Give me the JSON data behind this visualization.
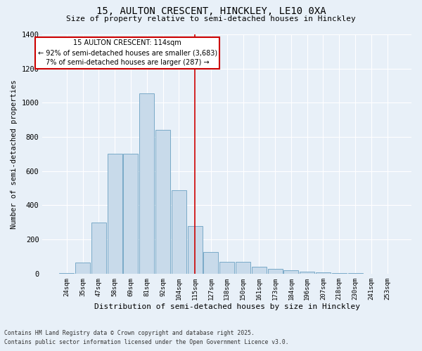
{
  "title1": "15, AULTON CRESCENT, HINCKLEY, LE10 0XA",
  "title2": "Size of property relative to semi-detached houses in Hinckley",
  "xlabel": "Distribution of semi-detached houses by size in Hinckley",
  "ylabel": "Number of semi-detached properties",
  "bar_color": "#c8daea",
  "bar_edge_color": "#7aaac8",
  "bg_color": "#e8f0f8",
  "grid_color": "#ffffff",
  "categories": [
    "24sqm",
    "35sqm",
    "47sqm",
    "58sqm",
    "69sqm",
    "81sqm",
    "92sqm",
    "104sqm",
    "115sqm",
    "127sqm",
    "138sqm",
    "150sqm",
    "161sqm",
    "173sqm",
    "184sqm",
    "196sqm",
    "207sqm",
    "218sqm",
    "230sqm",
    "241sqm",
    "253sqm"
  ],
  "values": [
    5,
    65,
    300,
    700,
    700,
    1055,
    840,
    490,
    280,
    125,
    70,
    70,
    40,
    28,
    20,
    10,
    6,
    4,
    2,
    1,
    1
  ],
  "annotation_title": "15 AULTON CRESCENT: 114sqm",
  "annotation_line1": "← 92% of semi-detached houses are smaller (3,683)",
  "annotation_line2": "7% of semi-detached houses are larger (287) →",
  "vline_color": "#cc0000",
  "annotation_box_edgecolor": "#cc0000",
  "vline_index": 8,
  "ylim": [
    0,
    1400
  ],
  "yticks": [
    0,
    200,
    400,
    600,
    800,
    1000,
    1200,
    1400
  ],
  "footnote1": "Contains HM Land Registry data © Crown copyright and database right 2025.",
  "footnote2": "Contains public sector information licensed under the Open Government Licence v3.0."
}
